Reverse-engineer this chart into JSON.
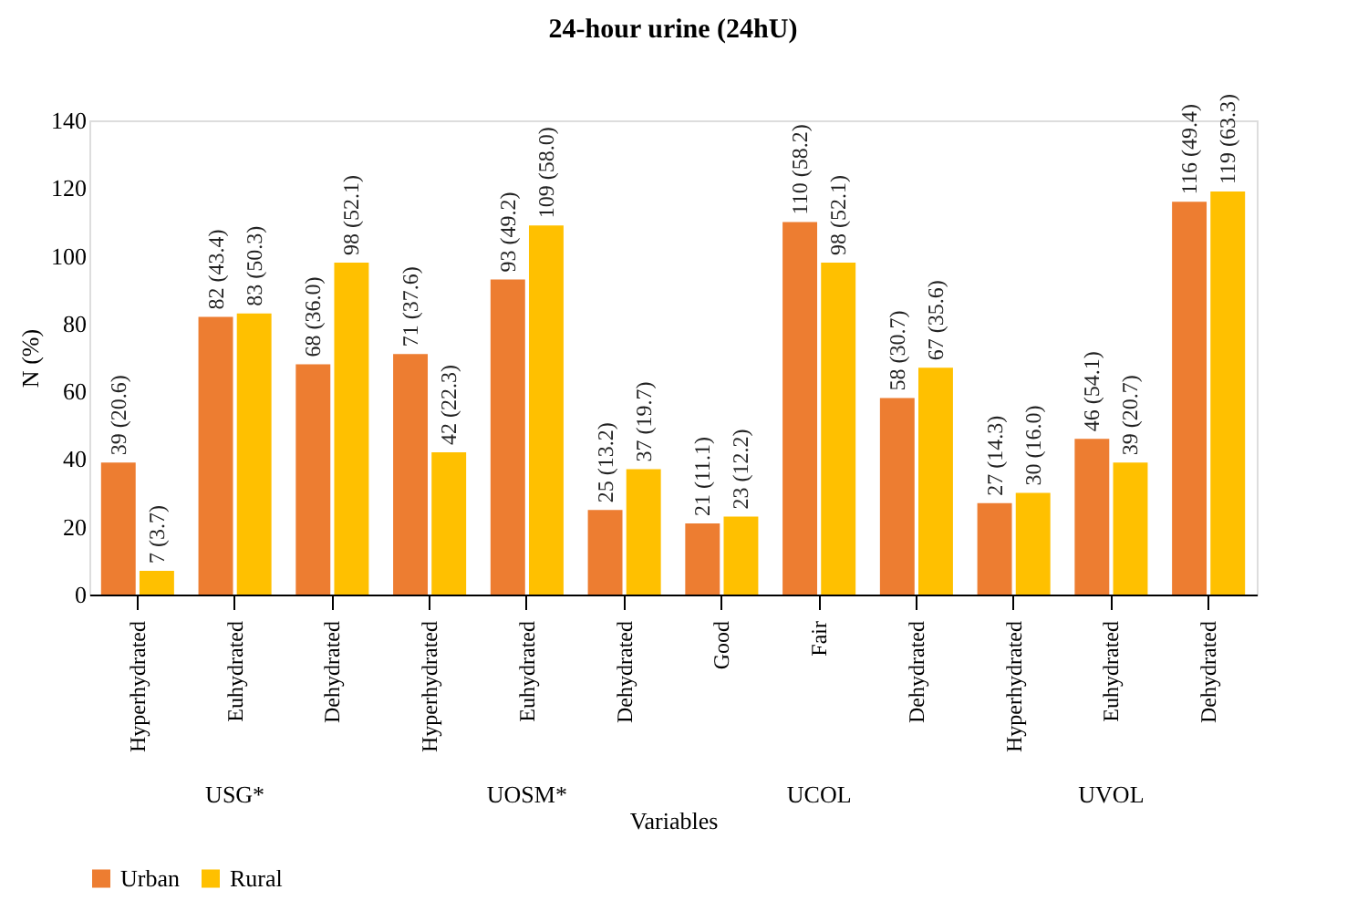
{
  "chart_data": {
    "type": "bar",
    "title": "24-hour urine (24hU)",
    "xlabel": "Variables",
    "ylabel": "N (%)",
    "categories": [
      "Hyperhydrated",
      "Euhydrated",
      "Dehydrated",
      "Hyperhydrated",
      "Euhydrated",
      "Dehydrated",
      "Good",
      "Fair",
      "Dehydrated",
      "Hyperhydrated",
      "Euhydrated",
      "Dehydrated"
    ],
    "annotations": [
      "USG*",
      "UOSM*",
      "UCOL",
      "UVOL"
    ],
    "series": [
      {
        "name": "Urban",
        "color": "#ed7d31",
        "values": [
          39,
          82,
          68,
          71,
          93,
          25,
          21,
          110,
          58,
          27,
          46,
          116
        ],
        "value_labels": [
          "39 (20.6)",
          "82 (43.4)",
          "68 (36.0)",
          "71 (37.6)",
          "93 (49.2)",
          "25 (13.2)",
          "21 (11.1)",
          "110 (58.2)",
          "58 (30.7)",
          "27 (14.3)",
          "46 (54.1)",
          "116 (49.4)"
        ]
      },
      {
        "name": "Rural",
        "color": "#ffc000",
        "values": [
          7,
          83,
          98,
          42,
          109,
          37,
          23,
          98,
          67,
          30,
          39,
          119
        ],
        "value_labels": [
          "7 (3.7)",
          "83 (50.3)",
          "98 (52.1)",
          "42 (22.3)",
          "109 (58.0)",
          "37 (19.7)",
          "23 (12.2)",
          "98 (52.1)",
          "67 (35.6)",
          "30 (16.0)",
          "39 (20.7)",
          "119 (63.3)"
        ]
      }
    ],
    "ylim": [
      0,
      140
    ],
    "yticks": [
      0,
      20,
      40,
      60,
      80,
      100,
      120,
      140
    ],
    "grid": false,
    "legend": "bottom"
  }
}
